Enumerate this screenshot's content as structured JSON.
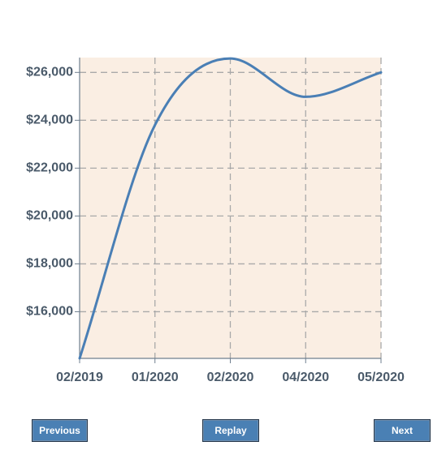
{
  "chart_data": {
    "type": "line",
    "title": "",
    "xlabel": "",
    "ylabel": "",
    "x_ticks": [
      "02/2019",
      "01/2020",
      "02/2020",
      "04/2020",
      "05/2020"
    ],
    "y_ticks": [
      "$16,000",
      "$18,000",
      "$20,000",
      "$22,000",
      "$24,000",
      "$26,000"
    ],
    "y_tick_values": [
      16000,
      18000,
      20000,
      22000,
      24000,
      26000
    ],
    "ylim": [
      14050,
      26620
    ],
    "grid": true,
    "series": [
      {
        "x": [
          "02/2019",
          "01/2020",
          "02/2020",
          "04/2020",
          "05/2020"
        ],
        "values": [
          14050,
          23800,
          26580,
          24980,
          26000
        ]
      }
    ],
    "colors": {
      "line": "#4a7fb5",
      "plot_background": "#faeee3",
      "grid": "#a9a9a9",
      "axis": "#6f7f8f"
    }
  },
  "controls": {
    "previous_label": "Previous",
    "replay_label": "Replay",
    "next_label": "Next"
  }
}
